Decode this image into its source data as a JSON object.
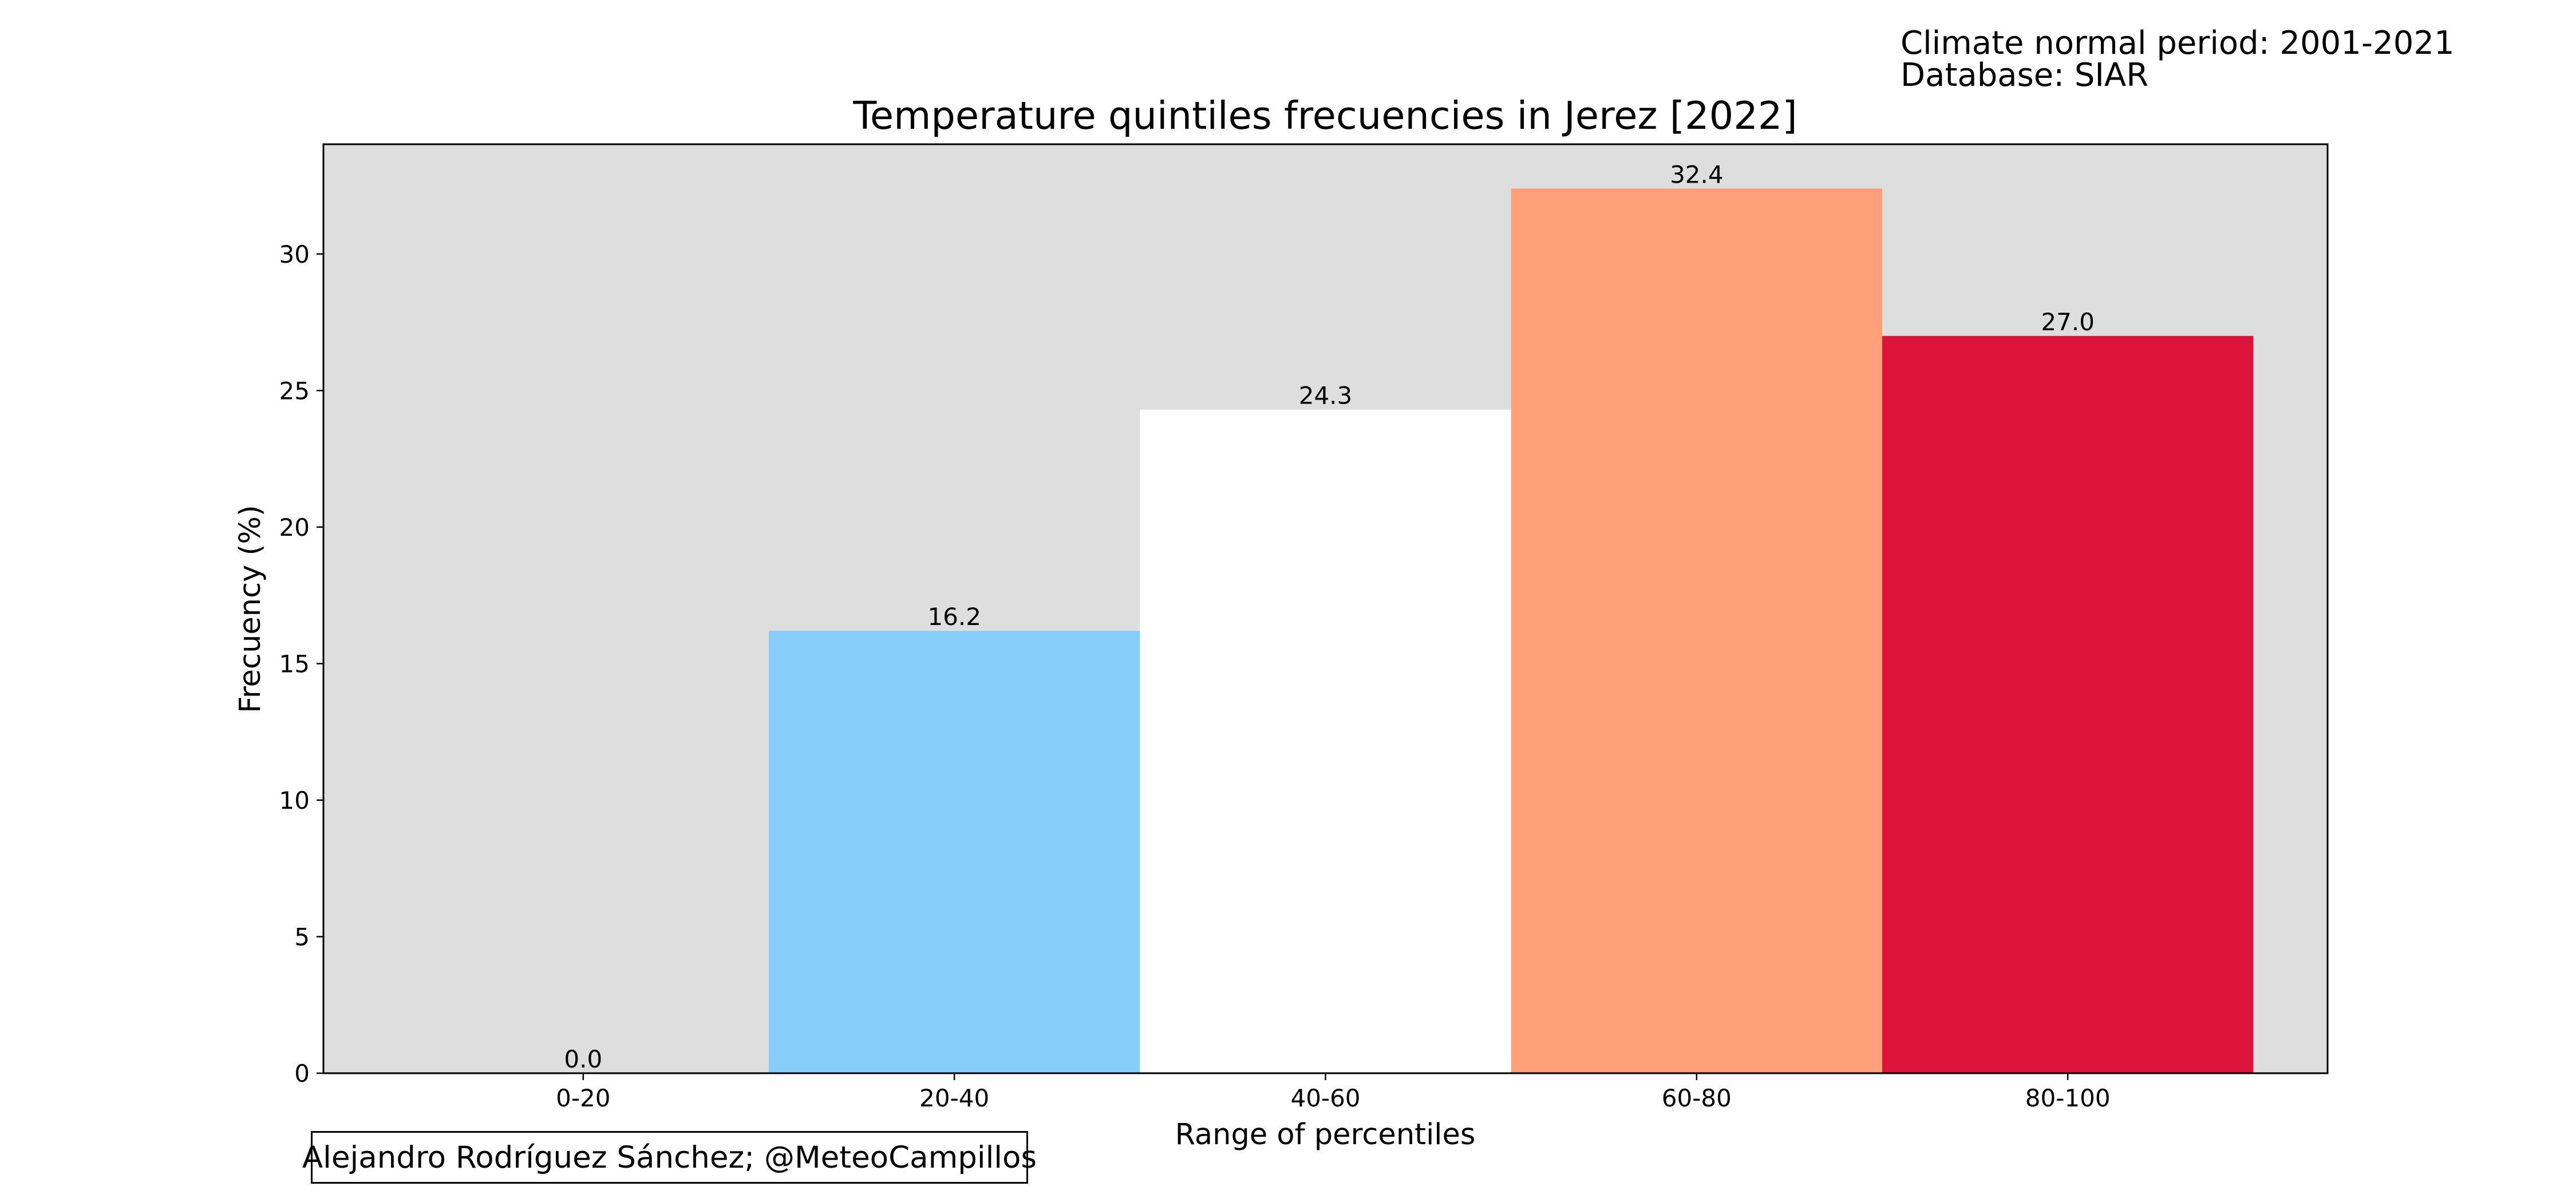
{
  "header": {
    "normal_period": "Climate normal period: 2001-2021",
    "database": "Database: SIAR"
  },
  "credit": "Alejandro Rodríguez Sánchez; @MeteoCampillos",
  "chart_data": {
    "type": "bar",
    "title": "Temperature quintiles frecuencies in Jerez [2022]",
    "xlabel": "Range of percentiles",
    "ylabel": "Frecuency (%)",
    "categories": [
      "0-20",
      "20-40",
      "40-60",
      "60-80",
      "80-100"
    ],
    "values": [
      0.0,
      16.2,
      24.3,
      32.4,
      27.0
    ],
    "value_labels": [
      "0.0",
      "16.2",
      "24.3",
      "32.4",
      "27.0"
    ],
    "colors": [
      "#dedede",
      "#87cefa",
      "#ffffff",
      "#ffa07a",
      "#dc143c"
    ],
    "plot_background": "#dedede",
    "ylim": [
      0,
      34.02
    ],
    "yticks": [
      0,
      5,
      10,
      15,
      20,
      25,
      30
    ],
    "ytick_labels": [
      "0",
      "5",
      "10",
      "15",
      "20",
      "25",
      "30"
    ],
    "grid": false,
    "legend": false
  }
}
